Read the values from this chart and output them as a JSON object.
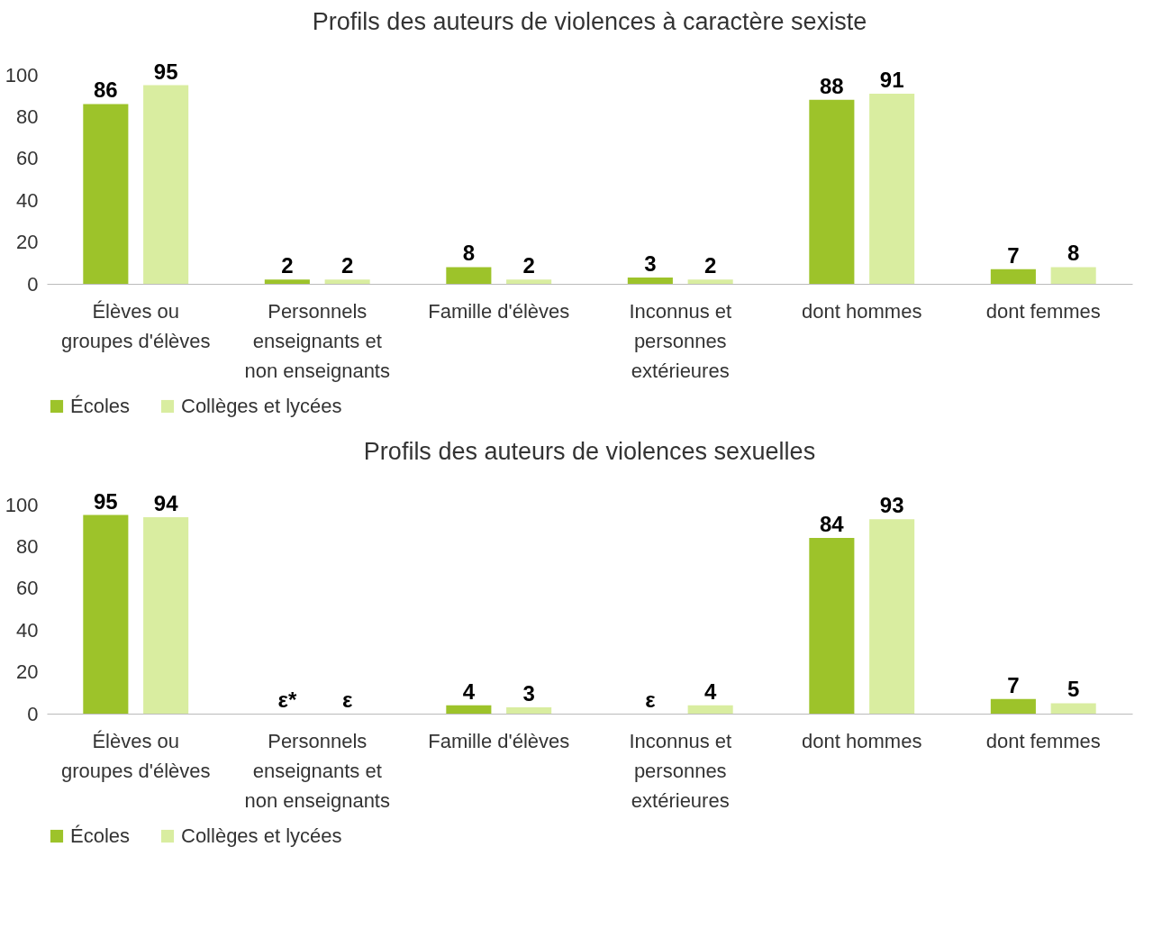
{
  "chart_data": [
    {
      "type": "bar",
      "title": "Profils des auteurs de violences à caractère sexiste",
      "categories": [
        "Élèves ou groupes d'élèves",
        "Personnels enseignants et non enseignants",
        "Famille d'élèves",
        "Inconnus et personnes extérieures",
        "dont hommes",
        "dont femmes"
      ],
      "series": [
        {
          "name": "Écoles",
          "color": "#9dc32a",
          "values": [
            86,
            2,
            8,
            3,
            88,
            7
          ]
        },
        {
          "name": "Collèges et lycées",
          "color": "#d9eda0",
          "values": [
            95,
            2,
            2,
            2,
            91,
            8
          ]
        }
      ],
      "ylim": [
        0,
        100
      ],
      "yticks": [
        0,
        20,
        40,
        60,
        80,
        100
      ],
      "grid": false,
      "legend": "bottom",
      "data_labels": true
    },
    {
      "type": "bar",
      "title": "Profils des auteurs de violences sexuelles",
      "categories": [
        "Élèves ou groupes d'élèves",
        "Personnels enseignants et non enseignants",
        "Famille d'élèves",
        "Inconnus et personnes extérieures",
        "dont hommes",
        "dont femmes"
      ],
      "series": [
        {
          "name": "Écoles",
          "color": "#9dc32a",
          "values": [
            95,
            null,
            4,
            null,
            84,
            7
          ],
          "value_labels": [
            "95",
            "ε*",
            "4",
            "ε",
            "84",
            "7"
          ]
        },
        {
          "name": "Collèges et lycées",
          "color": "#d9eda0",
          "values": [
            94,
            null,
            3,
            4,
            93,
            5
          ],
          "value_labels": [
            "94",
            "ε",
            "3",
            "4",
            "93",
            "5"
          ]
        }
      ],
      "ylim": [
        0,
        100
      ],
      "yticks": [
        0,
        20,
        40,
        60,
        80,
        100
      ],
      "grid": false,
      "legend": "bottom"
    }
  ]
}
